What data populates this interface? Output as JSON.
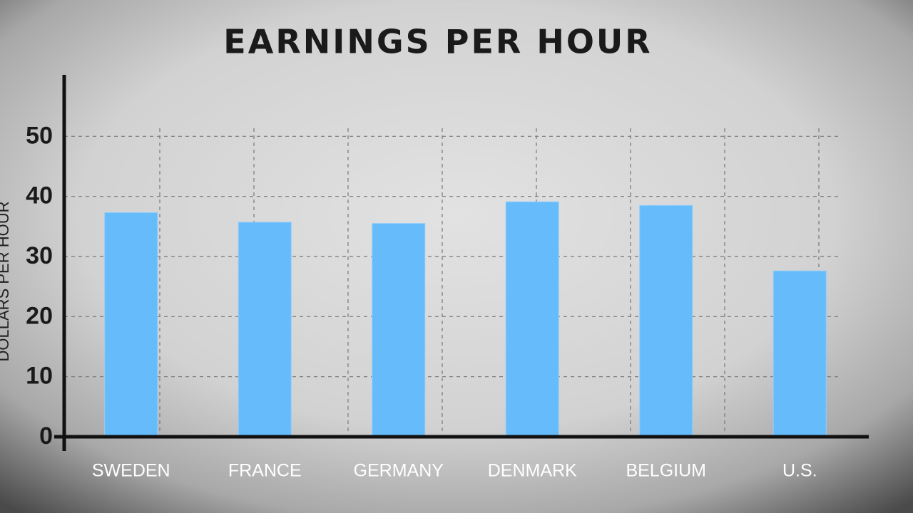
{
  "chart_data": {
    "type": "bar",
    "title": "EARNINGS PER HOUR",
    "y_label": "DOLLARS PER HOUR",
    "categories": [
      "SWEDEN",
      "FRANCE",
      "GERMANY",
      "DENMARK",
      "BELGIUM",
      "U.S."
    ],
    "values": [
      37.3,
      35.7,
      35.5,
      39.1,
      38.5,
      27.6
    ],
    "color": "#66bbfb",
    "ylim": [
      0,
      60
    ],
    "yticks": [
      0,
      10,
      20,
      30,
      40,
      50
    ],
    "grid": true
  }
}
